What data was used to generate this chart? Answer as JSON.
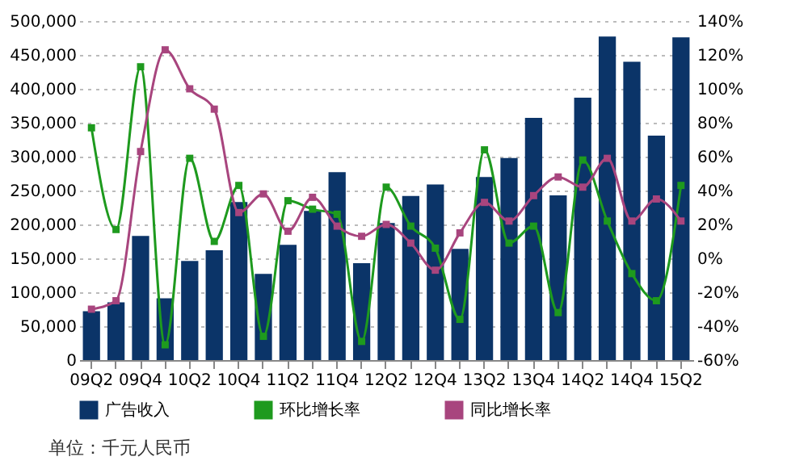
{
  "chart_data": {
    "type": "bar",
    "categories": [
      "09Q2",
      null,
      "09Q4",
      null,
      "10Q2",
      null,
      "10Q4",
      null,
      "11Q2",
      null,
      "11Q4",
      null,
      "12Q2",
      null,
      "12Q4",
      null,
      "13Q2",
      null,
      "13Q4",
      null,
      "14Q2",
      null,
      "14Q4",
      null,
      "15Q2"
    ],
    "series": [
      {
        "name": "广告收入",
        "color": "#0b3468",
        "values": [
          72000,
          85000,
          183000,
          91000,
          146000,
          162000,
          233000,
          127000,
          170000,
          220000,
          277000,
          143000,
          202000,
          242000,
          259000,
          164000,
          270000,
          298000,
          357000,
          243000,
          387000,
          477000,
          440000,
          331000,
          476000
        ]
      },
      {
        "name": "环比增长率",
        "type": "line",
        "axis": "y2",
        "color": "#1e9a1e",
        "marker": "square",
        "values": [
          77,
          17,
          113,
          -51,
          59,
          10,
          43,
          -46,
          34,
          29,
          26,
          -49,
          42,
          19,
          6,
          -36,
          64,
          9,
          19,
          -32,
          58,
          22,
          -9,
          -25,
          43
        ]
      },
      {
        "name": "同比增长率",
        "type": "line",
        "axis": "y2",
        "color": "#a8457e",
        "marker": "square",
        "values": [
          -30,
          -25,
          63,
          123,
          100,
          88,
          27,
          38,
          16,
          36,
          19,
          13,
          20,
          9,
          -7,
          15,
          33,
          22,
          37,
          48,
          42,
          59,
          22,
          35,
          22
        ]
      }
    ],
    "ylim": [
      0,
      500000
    ],
    "yticks": [
      0,
      {
        "value": 50000,
        "label": "50,000"
      },
      {
        "value": 100000,
        "label": "100,000"
      },
      {
        "value": 150000,
        "label": "150,000"
      },
      {
        "value": 200000,
        "label": "200,000"
      },
      {
        "value": 250000,
        "label": "250,000"
      },
      {
        "value": 300000,
        "label": "300,000"
      },
      {
        "value": 350000,
        "label": "350,000"
      },
      {
        "value": 400000,
        "label": "400,000"
      },
      {
        "value": 450000,
        "label": "450,000"
      },
      {
        "value": 500000,
        "label": "500,000"
      }
    ],
    "y2lim": [
      -60,
      140
    ],
    "y2ticks": [
      {
        "value": -60,
        "label": "-60%"
      },
      {
        "value": -40,
        "label": "-40%"
      },
      {
        "value": -20,
        "label": "-20%"
      },
      {
        "value": 0,
        "label": "0%"
      },
      {
        "value": 20,
        "label": "20%"
      },
      {
        "value": 40,
        "label": "40%"
      },
      {
        "value": 60,
        "label": "60%"
      },
      {
        "value": 80,
        "label": "80%"
      },
      {
        "value": 100,
        "label": "100%"
      },
      {
        "value": 120,
        "label": "120%"
      },
      {
        "value": 140,
        "label": "140%"
      }
    ],
    "grid": "y",
    "legend": "bottom",
    "annotations": [
      "单位：千元人民币"
    ]
  }
}
